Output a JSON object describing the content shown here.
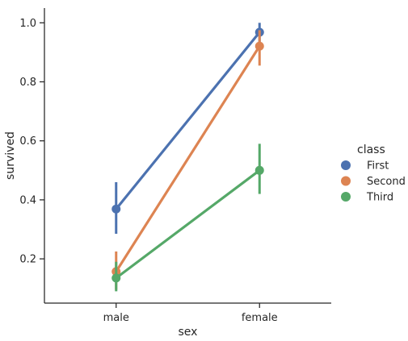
{
  "chart_data": {
    "type": "line",
    "categories": [
      "male",
      "female"
    ],
    "xlabel": "sex",
    "ylabel": "survived",
    "yticks": [
      "0.2",
      "0.4",
      "0.6",
      "0.8",
      "1.0"
    ],
    "ylim": [
      0.05,
      1.05
    ],
    "grid": false,
    "legend_title": "class",
    "legend_placement": "right",
    "series": [
      {
        "name": "First",
        "color": "#4c72b0",
        "values": [
          0.369,
          0.968
        ],
        "ci_low": [
          0.285,
          0.935
        ],
        "ci_high": [
          0.46,
          1.0
        ]
      },
      {
        "name": "Second",
        "color": "#dd8452",
        "values": [
          0.157,
          0.921
        ],
        "ci_low": [
          0.095,
          0.855
        ],
        "ci_high": [
          0.225,
          0.975
        ]
      },
      {
        "name": "Third",
        "color": "#55a868",
        "values": [
          0.135,
          0.5
        ],
        "ci_low": [
          0.09,
          0.42
        ],
        "ci_high": [
          0.19,
          0.59
        ]
      }
    ]
  }
}
